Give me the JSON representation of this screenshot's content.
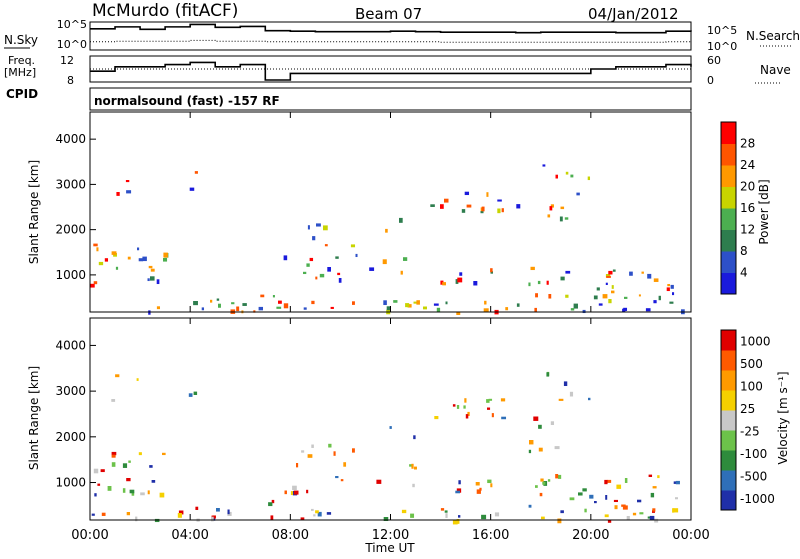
{
  "header": {
    "station": "McMurdo (fitACF)",
    "beam": "Beam 07",
    "date": "04/Jan/2012"
  },
  "chart_data": [
    {
      "type": "line",
      "name_left": "N.Sky",
      "name_right": "N.Search",
      "left_ticks": [
        "10^5",
        "10^0"
      ],
      "right_ticks": [
        "10^5",
        "10^0"
      ],
      "x": [
        0,
        1,
        2,
        3,
        4,
        5,
        6,
        7,
        8,
        9,
        10,
        11,
        12,
        13,
        14,
        15,
        16,
        17,
        18,
        19,
        20,
        21,
        22,
        23,
        24
      ],
      "sky_log": [
        4.0,
        4.4,
        3.9,
        4.4,
        4.9,
        4.3,
        4.5,
        3.6,
        3.5,
        3.4,
        3.4,
        3.4,
        3.5,
        3.4,
        3.3,
        3.3,
        3.3,
        3.2,
        3.3,
        3.3,
        3.3,
        3.2,
        3.2,
        3.5,
        3.4
      ],
      "search_log": [
        1.3,
        1.4,
        1.4,
        1.4,
        1.6,
        1.4,
        1.4,
        1.3,
        1.3,
        1.3,
        1.3,
        1.3,
        1.3,
        1.3,
        1.2,
        1.2,
        1.2,
        1.2,
        1.2,
        1.2,
        1.2,
        1.2,
        1.2,
        1.3,
        1.3
      ]
    },
    {
      "type": "line",
      "freq_label_top": "Freq.",
      "freq_label_bottom": "[MHz]",
      "freq_ticks": [
        "12",
        "8"
      ],
      "nave_ticks": [
        "60",
        "0"
      ],
      "nave_label": "Nave",
      "x": [
        0,
        1,
        2,
        3,
        4,
        5,
        6,
        7,
        8,
        9,
        10,
        11,
        12,
        13,
        14,
        15,
        16,
        17,
        18,
        19,
        20,
        21,
        22,
        23,
        24
      ],
      "freq_mhz": [
        10,
        11,
        11,
        11.5,
        12,
        11,
        11.5,
        8,
        9.5,
        9.5,
        9.5,
        9.5,
        9.5,
        9.5,
        9.5,
        9.5,
        9.5,
        9.5,
        9.5,
        9.5,
        10.5,
        11,
        11,
        11.5,
        11
      ],
      "nave": [
        30,
        30,
        30,
        30,
        30,
        30,
        30,
        30,
        30,
        30,
        30,
        30,
        30,
        30,
        30,
        30,
        30,
        30,
        30,
        30,
        30,
        30,
        30,
        30,
        30
      ]
    },
    {
      "type": "heatmap",
      "cpid_label": "CPID",
      "program": "normalsound (fast) -157 RF",
      "title": "Power",
      "ylabel": "Slant Range [km]",
      "yticks": [
        "4000",
        "3000",
        "2000",
        "1000"
      ],
      "ylim": [
        180,
        4600
      ],
      "colorbar": {
        "label": "Power [dB]",
        "ticks": [
          "28",
          "24",
          "20",
          "16",
          "12",
          "8",
          "4"
        ],
        "colors": [
          "#1a1adc",
          "#2d50c8",
          "#2e7d4e",
          "#4caf50",
          "#c8d400",
          "#ff9900",
          "#ff5500",
          "#ff0000"
        ]
      }
    },
    {
      "type": "heatmap",
      "title": "Velocity",
      "ylabel": "Slant Range [km]",
      "yticks": [
        "4000",
        "3000",
        "2000",
        "1000"
      ],
      "ylim": [
        180,
        4600
      ],
      "xlabel": "Time UT",
      "xticks": [
        "00:00",
        "04:00",
        "08:00",
        "12:00",
        "16:00",
        "20:00",
        "00:00"
      ],
      "colorbar": {
        "label": "Velocity [m s⁻¹]",
        "ticks": [
          "1000",
          "500",
          "100",
          "25",
          "-25",
          "-100",
          "-500",
          "-1000"
        ],
        "colors": [
          "#1f2fa8",
          "#2f6fb8",
          "#2e8b3c",
          "#6cc24a",
          "#c8c8c8",
          "#f5d000",
          "#ff9a00",
          "#ff5a00",
          "#e00000"
        ]
      }
    }
  ]
}
